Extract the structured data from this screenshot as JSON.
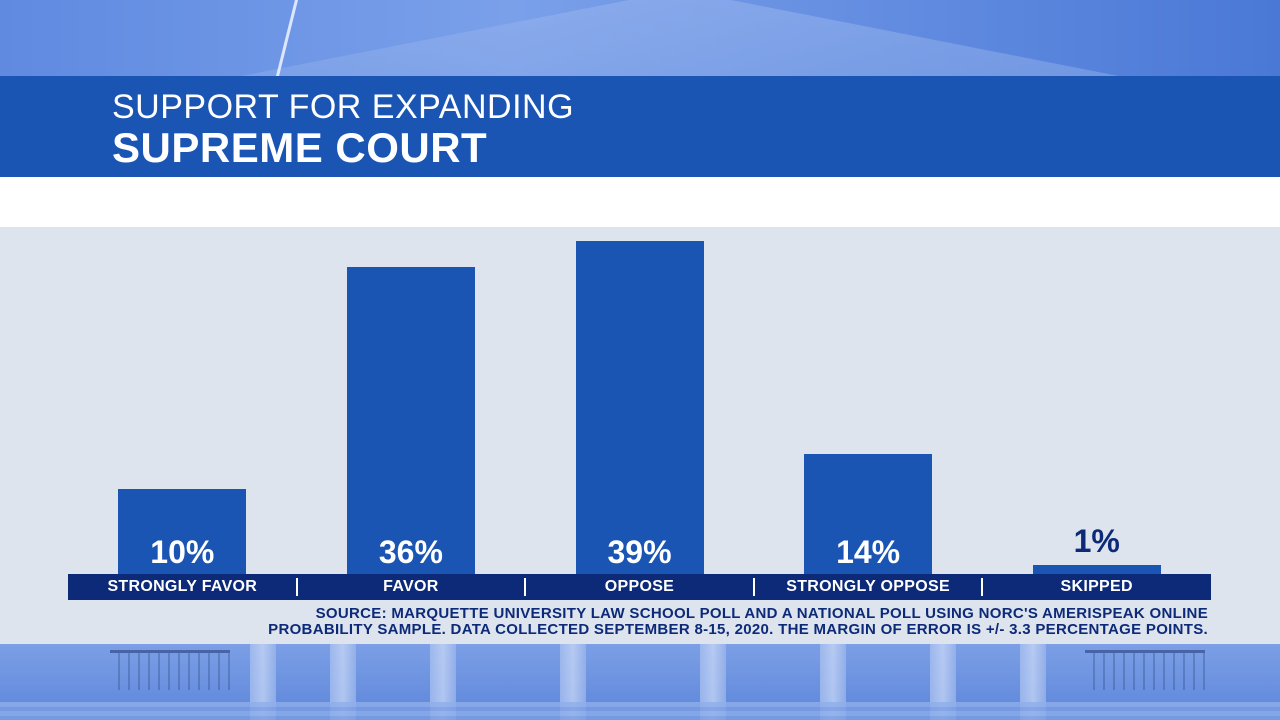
{
  "header": {
    "title_line1": "SUPPORT FOR EXPANDING",
    "title_line2": "SUPREME COURT"
  },
  "source": {
    "line1": "SOURCE: MARQUETTE UNIVERSITY LAW SCHOOL POLL AND A NATIONAL POLL USING NORC'S AMERISPEAK ONLINE",
    "line2": "PROBABILITY SAMPLE. DATA COLLECTED SEPTEMBER 8-15, 2020. THE MARGIN OF ERROR IS +/- 3.3 PERCENTAGE POINTS."
  },
  "colors": {
    "bar": "#1a55b4",
    "category_strip": "#0d2a78",
    "panel": "#dde4ee"
  },
  "chart_data": {
    "type": "bar",
    "title": "SUPPORT FOR EXPANDING SUPREME COURT",
    "categories": [
      "STRONGLY FAVOR",
      "FAVOR",
      "OPPOSE",
      "STRONGLY OPPOSE",
      "SKIPPED"
    ],
    "values": [
      10,
      36,
      39,
      14,
      1
    ],
    "value_labels": [
      "10%",
      "36%",
      "39%",
      "14%",
      "1%"
    ],
    "unit": "%",
    "ylim": [
      0,
      39
    ],
    "grid": false,
    "legend": "none"
  }
}
